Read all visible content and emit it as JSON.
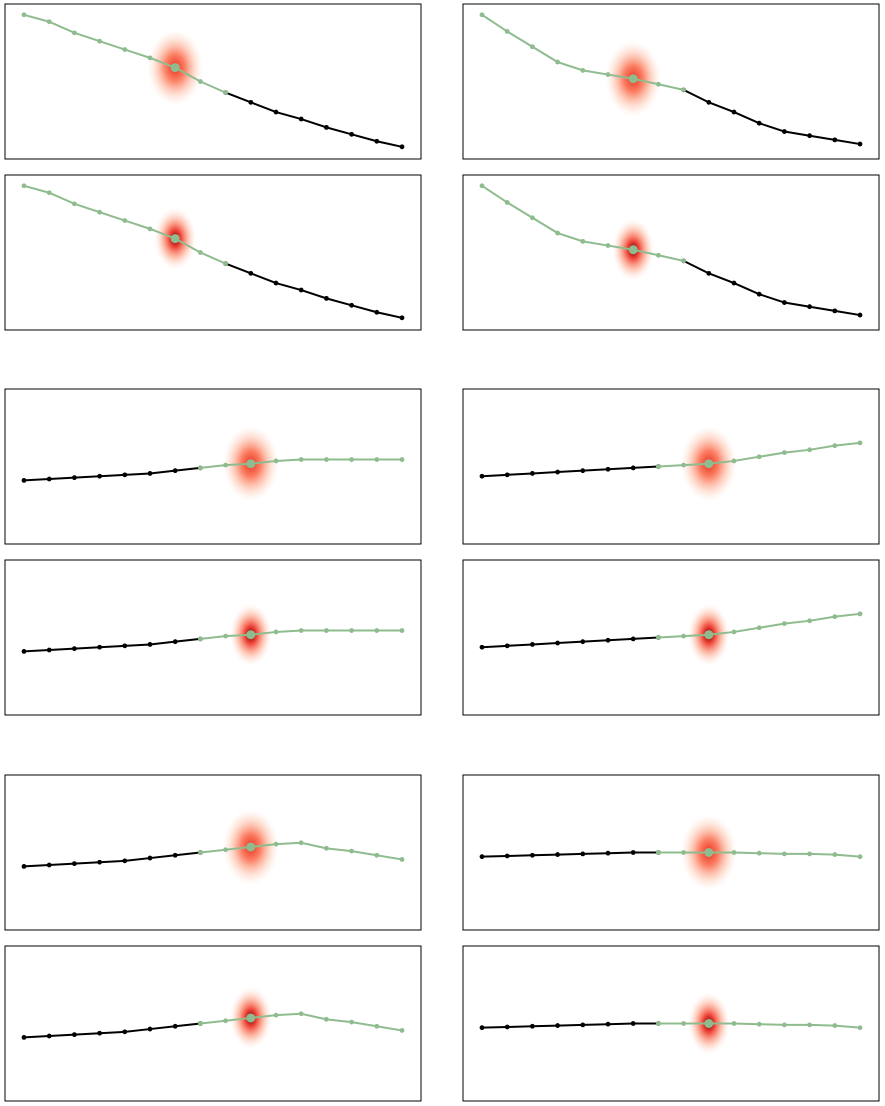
{
  "colors": {
    "observed": "#000000",
    "predicted": "#8fbc8f",
    "heat_center": "#67000d",
    "heat_mid": "#ef3b2c",
    "heat_edge": "#fee0d2",
    "frame": "#000000"
  },
  "icons": {
    "observed_marker": "black-dot-icon",
    "predicted_marker": "green-dot-icon"
  },
  "chart_data": [
    {
      "type": "line",
      "panel": "row1-left",
      "heat": "wide",
      "x": [
        0,
        1,
        2,
        3,
        4,
        5,
        6,
        7,
        8,
        9,
        10,
        11,
        12,
        13,
        14,
        15
      ],
      "observed_y": [
        null,
        null,
        null,
        null,
        null,
        null,
        null,
        null,
        0.42,
        0.35,
        0.28,
        0.23,
        0.17,
        0.12,
        0.07,
        0.03
      ],
      "predicted_y": [
        0.98,
        0.93,
        0.85,
        0.79,
        0.73,
        0.67,
        0.6,
        0.5,
        0.42,
        null,
        null,
        null,
        null,
        null,
        null,
        null
      ],
      "focus_index": 6,
      "grid": false
    },
    {
      "type": "line",
      "panel": "row1-right",
      "heat": "wide",
      "x": [
        0,
        1,
        2,
        3,
        4,
        5,
        6,
        7,
        8,
        9,
        10,
        11,
        12,
        13,
        14,
        15
      ],
      "observed_y": [
        null,
        null,
        null,
        null,
        null,
        null,
        null,
        null,
        0.44,
        0.35,
        0.28,
        0.2,
        0.14,
        0.11,
        0.08,
        0.05
      ],
      "predicted_y": [
        0.98,
        0.86,
        0.75,
        0.64,
        0.58,
        0.55,
        0.52,
        0.48,
        0.44,
        null,
        null,
        null,
        null,
        null,
        null,
        null
      ],
      "focus_index": 6,
      "grid": false
    },
    {
      "type": "line",
      "panel": "row2-left",
      "heat": "narrow",
      "x": [
        0,
        1,
        2,
        3,
        4,
        5,
        6,
        7,
        8,
        9,
        10,
        11,
        12,
        13,
        14,
        15
      ],
      "observed_y": [
        null,
        null,
        null,
        null,
        null,
        null,
        null,
        null,
        0.42,
        0.35,
        0.28,
        0.23,
        0.17,
        0.12,
        0.07,
        0.03
      ],
      "predicted_y": [
        0.98,
        0.93,
        0.85,
        0.79,
        0.73,
        0.67,
        0.6,
        0.5,
        0.42,
        null,
        null,
        null,
        null,
        null,
        null,
        null
      ],
      "focus_index": 6,
      "grid": false
    },
    {
      "type": "line",
      "panel": "row2-right",
      "heat": "narrow",
      "x": [
        0,
        1,
        2,
        3,
        4,
        5,
        6,
        7,
        8,
        9,
        10,
        11,
        12,
        13,
        14,
        15
      ],
      "observed_y": [
        null,
        null,
        null,
        null,
        null,
        null,
        null,
        null,
        0.44,
        0.35,
        0.28,
        0.2,
        0.14,
        0.11,
        0.08,
        0.05
      ],
      "predicted_y": [
        0.98,
        0.86,
        0.75,
        0.64,
        0.58,
        0.55,
        0.52,
        0.48,
        0.44,
        null,
        null,
        null,
        null,
        null,
        null,
        null
      ],
      "focus_index": 6,
      "grid": false
    },
    {
      "type": "line",
      "panel": "row3-left",
      "heat": "wide",
      "x": [
        0,
        1,
        2,
        3,
        4,
        5,
        6,
        7,
        8,
        9,
        10,
        11,
        12,
        13,
        14,
        15
      ],
      "observed_y": [
        0.4,
        0.41,
        0.42,
        0.43,
        0.44,
        0.45,
        0.47,
        0.49,
        null,
        null,
        null,
        null,
        null,
        null,
        null,
        null
      ],
      "predicted_y": [
        null,
        null,
        null,
        null,
        null,
        null,
        null,
        0.49,
        0.51,
        0.52,
        0.54,
        0.55,
        0.55,
        0.55,
        0.55,
        0.55
      ],
      "focus_index": 9,
      "grid": false
    },
    {
      "type": "line",
      "panel": "row3-right",
      "heat": "wide",
      "x": [
        0,
        1,
        2,
        3,
        4,
        5,
        6,
        7,
        8,
        9,
        10,
        11,
        12,
        13,
        14,
        15
      ],
      "observed_y": [
        0.43,
        0.44,
        0.45,
        0.46,
        0.47,
        0.48,
        0.49,
        0.5,
        null,
        null,
        null,
        null,
        null,
        null,
        null,
        null
      ],
      "predicted_y": [
        null,
        null,
        null,
        null,
        null,
        null,
        null,
        0.5,
        0.51,
        0.52,
        0.54,
        0.57,
        0.6,
        0.62,
        0.65,
        0.67
      ],
      "focus_index": 9,
      "grid": false
    },
    {
      "type": "line",
      "panel": "row4-left",
      "heat": "narrow",
      "x": [
        0,
        1,
        2,
        3,
        4,
        5,
        6,
        7,
        8,
        9,
        10,
        11,
        12,
        13,
        14,
        15
      ],
      "observed_y": [
        0.4,
        0.41,
        0.42,
        0.43,
        0.44,
        0.45,
        0.47,
        0.49,
        null,
        null,
        null,
        null,
        null,
        null,
        null,
        null
      ],
      "predicted_y": [
        null,
        null,
        null,
        null,
        null,
        null,
        null,
        0.49,
        0.51,
        0.52,
        0.54,
        0.55,
        0.55,
        0.55,
        0.55,
        0.55
      ],
      "focus_index": 9,
      "grid": false
    },
    {
      "type": "line",
      "panel": "row4-right",
      "heat": "narrow",
      "x": [
        0,
        1,
        2,
        3,
        4,
        5,
        6,
        7,
        8,
        9,
        10,
        11,
        12,
        13,
        14,
        15
      ],
      "observed_y": [
        0.43,
        0.44,
        0.45,
        0.46,
        0.47,
        0.48,
        0.49,
        0.5,
        null,
        null,
        null,
        null,
        null,
        null,
        null,
        null
      ],
      "predicted_y": [
        null,
        null,
        null,
        null,
        null,
        null,
        null,
        0.5,
        0.51,
        0.52,
        0.54,
        0.57,
        0.6,
        0.62,
        0.65,
        0.67
      ],
      "focus_index": 9,
      "grid": false
    },
    {
      "type": "line",
      "panel": "row5-left",
      "heat": "wide",
      "x": [
        0,
        1,
        2,
        3,
        4,
        5,
        6,
        7,
        8,
        9,
        10,
        11,
        12,
        13,
        14,
        15
      ],
      "observed_y": [
        0.4,
        0.41,
        0.42,
        0.43,
        0.44,
        0.46,
        0.48,
        0.5,
        null,
        null,
        null,
        null,
        null,
        null,
        null,
        null
      ],
      "predicted_y": [
        null,
        null,
        null,
        null,
        null,
        null,
        null,
        0.5,
        0.52,
        0.54,
        0.56,
        0.57,
        0.53,
        0.51,
        0.48,
        0.45
      ],
      "focus_index": 9,
      "grid": false
    },
    {
      "type": "line",
      "panel": "row5-right",
      "heat": "wide",
      "x": [
        0,
        1,
        2,
        3,
        4,
        5,
        6,
        7,
        8,
        9,
        10,
        11,
        12,
        13,
        14,
        15
      ],
      "observed_y": [
        0.47,
        0.475,
        0.48,
        0.485,
        0.49,
        0.495,
        0.5,
        0.5,
        null,
        null,
        null,
        null,
        null,
        null,
        null,
        null
      ],
      "predicted_y": [
        null,
        null,
        null,
        null,
        null,
        null,
        null,
        0.5,
        0.5,
        0.5,
        0.5,
        0.495,
        0.49,
        0.49,
        0.485,
        0.47
      ],
      "focus_index": 9,
      "grid": false
    },
    {
      "type": "line",
      "panel": "row6-left",
      "heat": "narrow",
      "x": [
        0,
        1,
        2,
        3,
        4,
        5,
        6,
        7,
        8,
        9,
        10,
        11,
        12,
        13,
        14,
        15
      ],
      "observed_y": [
        0.4,
        0.41,
        0.42,
        0.43,
        0.44,
        0.46,
        0.48,
        0.5,
        null,
        null,
        null,
        null,
        null,
        null,
        null,
        null
      ],
      "predicted_y": [
        null,
        null,
        null,
        null,
        null,
        null,
        null,
        0.5,
        0.52,
        0.54,
        0.56,
        0.57,
        0.53,
        0.51,
        0.48,
        0.45
      ],
      "focus_index": 9,
      "grid": false
    },
    {
      "type": "line",
      "panel": "row6-right",
      "heat": "narrow",
      "x": [
        0,
        1,
        2,
        3,
        4,
        5,
        6,
        7,
        8,
        9,
        10,
        11,
        12,
        13,
        14,
        15
      ],
      "observed_y": [
        0.47,
        0.475,
        0.48,
        0.485,
        0.49,
        0.495,
        0.5,
        0.5,
        null,
        null,
        null,
        null,
        null,
        null,
        null,
        null
      ],
      "predicted_y": [
        null,
        null,
        null,
        null,
        null,
        null,
        null,
        0.5,
        0.5,
        0.5,
        0.5,
        0.495,
        0.49,
        0.49,
        0.485,
        0.47
      ],
      "focus_index": 9,
      "grid": false
    }
  ]
}
